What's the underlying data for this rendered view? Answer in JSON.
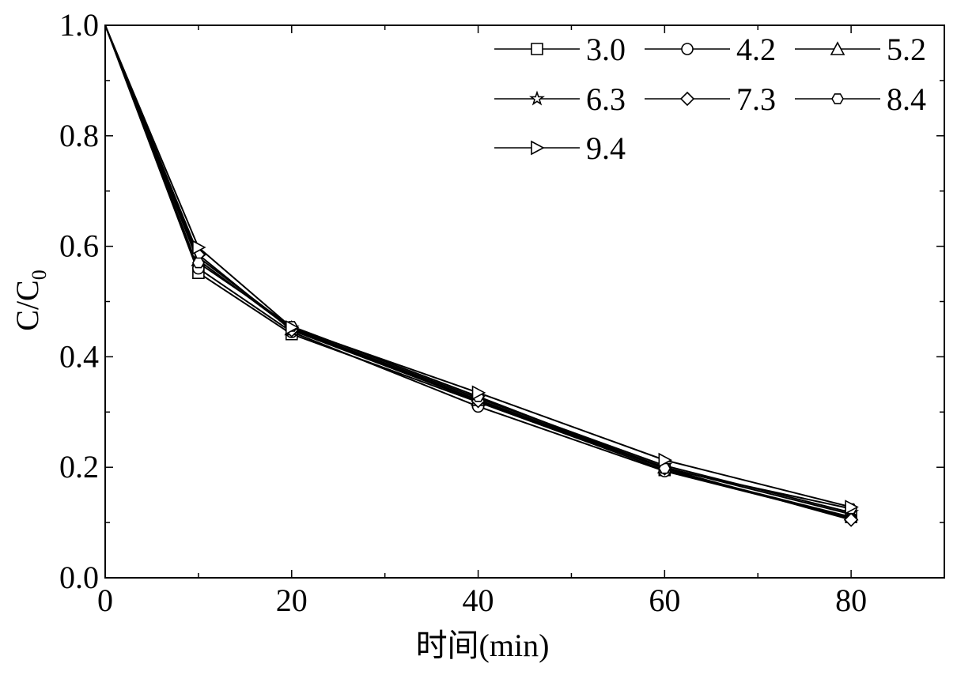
{
  "chart_data": {
    "type": "line",
    "title": "",
    "xlabel": "时间(min)",
    "ylabel_main": "C/C",
    "ylabel_sub": "0",
    "xlim": [
      0,
      90
    ],
    "ylim": [
      0,
      1.0
    ],
    "x_ticks": [
      "0",
      "20",
      "40",
      "60",
      "80"
    ],
    "x_tick_values": [
      0,
      20,
      40,
      60,
      80
    ],
    "y_ticks": [
      "0.0",
      "0.2",
      "0.4",
      "0.6",
      "0.8",
      "1.0"
    ],
    "y_tick_values": [
      0,
      0.2,
      0.4,
      0.6,
      0.8,
      1.0
    ],
    "grid": false,
    "legend_position": "top-right",
    "x": [
      0,
      10,
      20,
      40,
      60,
      80
    ],
    "series": [
      {
        "name": "3.0",
        "marker": "square",
        "values": [
          1.0,
          0.552,
          0.441,
          0.318,
          0.195,
          0.11
        ]
      },
      {
        "name": "4.2",
        "marker": "circle",
        "values": [
          1.0,
          0.56,
          0.445,
          0.31,
          0.193,
          0.108
        ]
      },
      {
        "name": "5.2",
        "marker": "triangle-up",
        "values": [
          1.0,
          0.575,
          0.45,
          0.322,
          0.2,
          0.115
        ]
      },
      {
        "name": "6.3",
        "marker": "star",
        "values": [
          1.0,
          0.58,
          0.452,
          0.325,
          0.203,
          0.118
        ]
      },
      {
        "name": "7.3",
        "marker": "diamond",
        "values": [
          1.0,
          0.585,
          0.448,
          0.32,
          0.198,
          0.105
        ]
      },
      {
        "name": "8.4",
        "marker": "hexagon",
        "values": [
          1.0,
          0.57,
          0.455,
          0.328,
          0.198,
          0.125
        ]
      },
      {
        "name": "9.4",
        "marker": "triangle-right",
        "values": [
          1.0,
          0.598,
          0.453,
          0.335,
          0.213,
          0.128
        ]
      }
    ]
  }
}
